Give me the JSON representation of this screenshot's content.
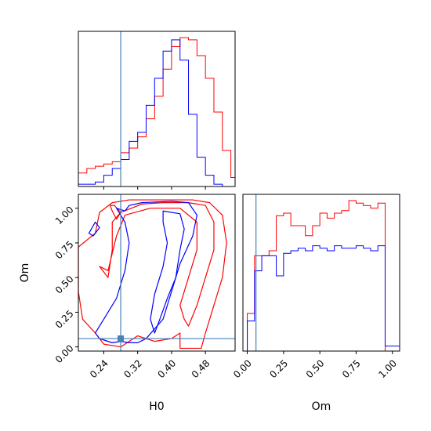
{
  "chart_data": {
    "type": "corner",
    "parameters": [
      "H0",
      "Om"
    ],
    "truth": {
      "H0": 0.28,
      "Om": 0.06
    },
    "colors": {
      "series_a": "#ff0000",
      "series_b": "#0000ff",
      "truth": "#4682b4"
    },
    "panels": [
      {
        "id": "hist-H0",
        "type": "step-histogram",
        "xlim": [
          0.18,
          0.55
        ],
        "x_ticks": [
          0.24,
          0.32,
          0.4,
          0.48
        ],
        "x_tick_labels_visible": false,
        "y_ticks_visible": false,
        "bin_edges": [
          0.18,
          0.2,
          0.22,
          0.24,
          0.26,
          0.28,
          0.3,
          0.32,
          0.34,
          0.36,
          0.38,
          0.4,
          0.42,
          0.44,
          0.46,
          0.48,
          0.5,
          0.52,
          0.54,
          0.55
        ],
        "series": [
          {
            "color_key": "series_a",
            "counts": [
              6,
              8,
              9,
              10,
              11,
              15,
              17,
              22,
              30,
              40,
              52,
              62,
              66,
              65,
              58,
              48,
              33,
              16,
              4
            ]
          },
          {
            "color_key": "series_b",
            "counts": [
              1,
              1,
              2,
              5,
              8,
              12,
              20,
              24,
              36,
              48,
              60,
              65,
              56,
              32,
              13,
              5,
              1,
              0,
              0
            ]
          }
        ]
      },
      {
        "id": "hist-Om",
        "type": "step-histogram",
        "xlim": [
          -0.03,
          1.05
        ],
        "x_ticks": [
          0.0,
          0.25,
          0.5,
          0.75,
          1.0
        ],
        "x_tick_labels": [
          "0.00",
          "0.25",
          "0.50",
          "0.75",
          "1.00"
        ],
        "xlabel": "Om",
        "y_ticks_visible": false,
        "bin_edges": [
          0.0,
          0.05,
          0.1,
          0.15,
          0.2,
          0.25,
          0.3,
          0.35,
          0.4,
          0.45,
          0.5,
          0.55,
          0.6,
          0.65,
          0.7,
          0.75,
          0.8,
          0.85,
          0.9,
          0.95,
          1.0,
          1.05
        ],
        "series": [
          {
            "color_key": "series_a",
            "counts": [
              15,
              38,
              38,
              40,
              54,
              55,
              50,
              50,
              46,
              50,
              55,
              53,
              55,
              56,
              60,
              59,
              58,
              57,
              59,
              0,
              0
            ]
          },
          {
            "color_key": "series_b",
            "counts": [
              12,
              32,
              38,
              38,
              30,
              39,
              40,
              41,
              40,
              42,
              41,
              40,
              42,
              41,
              41,
              42,
              41,
              40,
              42,
              2,
              2
            ]
          }
        ]
      },
      {
        "id": "contour-H0-Om",
        "type": "2d-contour",
        "xlim": [
          0.18,
          0.55
        ],
        "ylim": [
          -0.03,
          1.1
        ],
        "x_ticks": [
          0.24,
          0.32,
          0.4,
          0.48
        ],
        "x_tick_labels": [
          "0.24",
          "0.32",
          "0.40",
          "0.48"
        ],
        "xlabel": "H0",
        "y_ticks": [
          0.0,
          0.25,
          0.5,
          0.75,
          1.0
        ],
        "y_tick_labels": [
          "0.00",
          "0.25",
          "0.50",
          "0.75",
          "1.00"
        ],
        "ylabel": "Om",
        "series": [
          {
            "color_key": "series_a",
            "contours": [
              [
                [
                  0.18,
                  0.72
                ],
                [
                  0.22,
                  0.82
                ],
                [
                  0.23,
                  0.97
                ],
                [
                  0.26,
                  1.04
                ],
                [
                  0.3,
                  1.06
                ],
                [
                  0.38,
                  1.06
                ],
                [
                  0.45,
                  1.06
                ],
                [
                  0.49,
                  1.04
                ],
                [
                  0.52,
                  0.95
                ],
                [
                  0.53,
                  0.75
                ],
                [
                  0.52,
                  0.5
                ],
                [
                  0.5,
                  0.3
                ],
                [
                  0.48,
                  0.1
                ],
                [
                  0.47,
                  -0.01
                ],
                [
                  0.42,
                  -0.01
                ],
                [
                  0.42,
                  0.1
                ],
                [
                  0.4,
                  0.06
                ],
                [
                  0.36,
                  0.04
                ],
                [
                  0.34,
                  0.06
                ],
                [
                  0.32,
                  0.08
                ],
                [
                  0.28,
                  0.0
                ],
                [
                  0.24,
                  0.02
                ],
                [
                  0.22,
                  0.1
                ],
                [
                  0.19,
                  0.2
                ],
                [
                  0.18,
                  0.4
                ]
              ],
              [
                [
                  0.23,
                  0.58
                ],
                [
                  0.25,
                  0.5
                ],
                [
                  0.26,
                  0.7
                ],
                [
                  0.26,
                  0.9
                ],
                [
                  0.28,
                  0.97
                ],
                [
                  0.33,
                  1.03
                ],
                [
                  0.38,
                  1.04
                ],
                [
                  0.44,
                  1.04
                ],
                [
                  0.48,
                  1.02
                ],
                [
                  0.5,
                  0.9
                ],
                [
                  0.5,
                  0.7
                ],
                [
                  0.48,
                  0.5
                ],
                [
                  0.46,
                  0.3
                ],
                [
                  0.44,
                  0.15
                ],
                [
                  0.43,
                  0.2
                ],
                [
                  0.42,
                  0.3
                ],
                [
                  0.44,
                  0.5
                ],
                [
                  0.46,
                  0.7
                ],
                [
                  0.46,
                  0.9
                ],
                [
                  0.42,
                  1.0
                ],
                [
                  0.35,
                  1.0
                ],
                [
                  0.29,
                  0.95
                ],
                [
                  0.27,
                  0.8
                ],
                [
                  0.25,
                  0.55
                ]
              ],
              [
                [
                  0.255,
                  1.02
                ],
                [
                  0.26,
                  0.98
                ],
                [
                  0.27,
                  0.92
                ],
                [
                  0.28,
                  0.97
                ],
                [
                  0.265,
                  1.02
                ]
              ]
            ]
          },
          {
            "color_key": "series_b",
            "contours": [
              [
                [
                  0.27,
                  1.0
                ],
                [
                  0.29,
                  0.98
                ],
                [
                  0.3,
                  1.02
                ],
                [
                  0.33,
                  1.04
                ],
                [
                  0.4,
                  1.05
                ],
                [
                  0.44,
                  1.04
                ],
                [
                  0.46,
                  0.95
                ],
                [
                  0.45,
                  0.8
                ],
                [
                  0.42,
                  0.6
                ],
                [
                  0.4,
                  0.4
                ],
                [
                  0.38,
                  0.2
                ],
                [
                  0.34,
                  0.06
                ],
                [
                  0.32,
                  0.03
                ],
                [
                  0.3,
                  0.03
                ],
                [
                  0.28,
                  0.04
                ],
                [
                  0.26,
                  0.03
                ],
                [
                  0.23,
                  0.06
                ],
                [
                  0.22,
                  0.1
                ],
                [
                  0.24,
                  0.2
                ],
                [
                  0.27,
                  0.35
                ],
                [
                  0.29,
                  0.55
                ],
                [
                  0.3,
                  0.75
                ],
                [
                  0.29,
                  0.9
                ]
              ],
              [
                [
                  0.38,
                  0.98
                ],
                [
                  0.42,
                  0.96
                ],
                [
                  0.43,
                  0.85
                ],
                [
                  0.42,
                  0.7
                ],
                [
                  0.41,
                  0.5
                ],
                [
                  0.39,
                  0.35
                ],
                [
                  0.37,
                  0.18
                ],
                [
                  0.36,
                  0.1
                ],
                [
                  0.35,
                  0.2
                ],
                [
                  0.36,
                  0.38
                ],
                [
                  0.38,
                  0.58
                ],
                [
                  0.39,
                  0.75
                ],
                [
                  0.38,
                  0.9
                ]
              ],
              [
                [
                  0.205,
                  0.82
                ],
                [
                  0.22,
                  0.9
                ],
                [
                  0.23,
                  0.86
                ],
                [
                  0.215,
                  0.8
                ]
              ]
            ]
          }
        ]
      }
    ]
  }
}
